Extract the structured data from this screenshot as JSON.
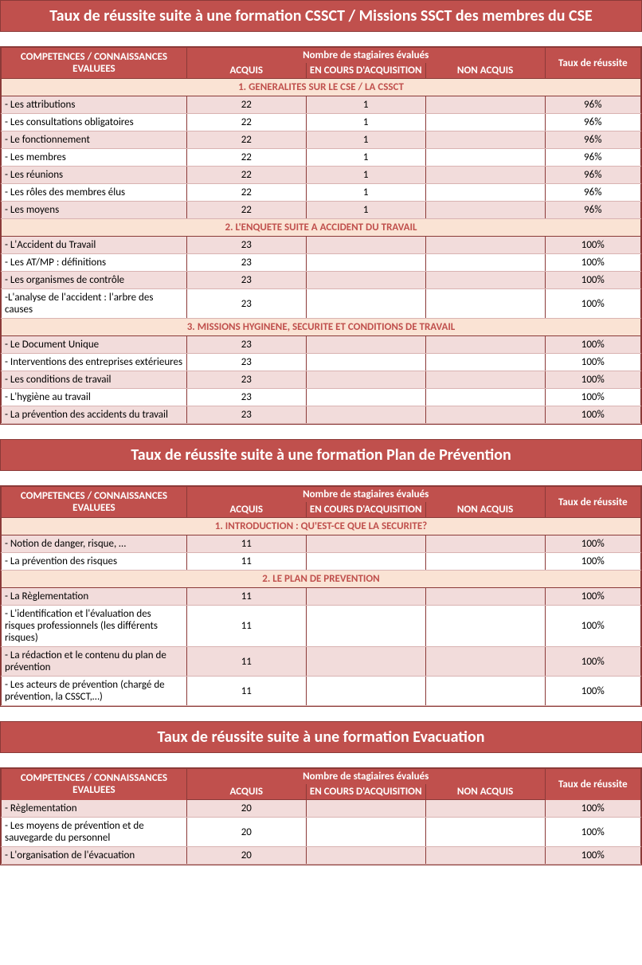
{
  "colors": {
    "header_bg": "#c0504d",
    "header_text": "#ffffff",
    "section_bg": "#fae3d4",
    "section_text": "#c0504d",
    "alt_row_bg": "#f2dcdb",
    "even_row_bg": "#ffffff",
    "border": "#8b3a38",
    "row_border": "#d9b3b2"
  },
  "column_headers": {
    "competences": "COMPETENCES / CONNAISSANCES EVALUEES",
    "nombre": "Nombre de stagiaires évalués",
    "acquis": "ACQUIS",
    "en_cours": "EN COURS D'ACQUISITION",
    "non_acquis": "NON ACQUIS",
    "taux": "Taux de réussite"
  },
  "tables": [
    {
      "title": "Taux de réussite suite à une formation CSSCT / Missions SSCT des membres du CSE",
      "groups": [
        {
          "header": "1. GENERALITES SUR LE CSE / LA CSSCT",
          "rows": [
            {
              "label": "- Les attributions",
              "acquis": "22",
              "en_cours": "1",
              "non_acquis": "",
              "taux": "96%"
            },
            {
              "label": "- Les consultations obligatoires",
              "acquis": "22",
              "en_cours": "1",
              "non_acquis": "",
              "taux": "96%"
            },
            {
              "label": "- Le fonctionnement",
              "acquis": "22",
              "en_cours": "1",
              "non_acquis": "",
              "taux": "96%"
            },
            {
              "label": "- Les membres",
              "acquis": "22",
              "en_cours": "1",
              "non_acquis": "",
              "taux": "96%"
            },
            {
              "label": "- Les réunions",
              "acquis": "22",
              "en_cours": "1",
              "non_acquis": "",
              "taux": "96%"
            },
            {
              "label": "- Les rôles des membres élus",
              "acquis": "22",
              "en_cours": "1",
              "non_acquis": "",
              "taux": "96%"
            },
            {
              "label": "- Les moyens",
              "acquis": "22",
              "en_cours": "1",
              "non_acquis": "",
              "taux": "96%"
            }
          ]
        },
        {
          "header": "2. L'ENQUETE SUITE A ACCIDENT DU TRAVAIL",
          "rows": [
            {
              "label": "- L'Accident du Travail",
              "acquis": "23",
              "en_cours": "",
              "non_acquis": "",
              "taux": "100%"
            },
            {
              "label": "- Les AT/MP : définitions",
              "acquis": "23",
              "en_cours": "",
              "non_acquis": "",
              "taux": "100%"
            },
            {
              "label": "- Les organismes de contrôle",
              "acquis": "23",
              "en_cours": "",
              "non_acquis": "",
              "taux": "100%"
            },
            {
              "label": "-L'analyse de l'accident : l'arbre des causes",
              "acquis": "23",
              "en_cours": "",
              "non_acquis": "",
              "taux": "100%"
            }
          ]
        },
        {
          "header": "3. MISSIONS HYGINENE, SECURITE ET CONDITIONS DE TRAVAIL",
          "rows": [
            {
              "label": "- Le Document Unique",
              "acquis": "23",
              "en_cours": "",
              "non_acquis": "",
              "taux": "100%"
            },
            {
              "label": "- Interventions des entreprises extérieures",
              "acquis": "23",
              "en_cours": "",
              "non_acquis": "",
              "taux": "100%"
            },
            {
              "label": "- Les conditions de travail",
              "acquis": "23",
              "en_cours": "",
              "non_acquis": "",
              "taux": "100%"
            },
            {
              "label": "- L'hygiène au travail",
              "acquis": "23",
              "en_cours": "",
              "non_acquis": "",
              "taux": "100%"
            },
            {
              "label": "- La prévention des accidents du travail",
              "acquis": "23",
              "en_cours": "",
              "non_acquis": "",
              "taux": "100%"
            }
          ]
        }
      ]
    },
    {
      "title": "Taux de réussite suite à une formation Plan de Prévention",
      "groups": [
        {
          "header": "1. INTRODUCTION : QU'EST-CE QUE LA SECURITE?",
          "rows": [
            {
              "label": "- Notion de danger, risque, …",
              "acquis": "11",
              "en_cours": "",
              "non_acquis": "",
              "taux": "100%"
            },
            {
              "label": "- La prévention des risques",
              "acquis": "11",
              "en_cours": "",
              "non_acquis": "",
              "taux": "100%"
            }
          ]
        },
        {
          "header": "2. LE PLAN DE PREVENTION",
          "rows": [
            {
              "label": "- La Règlementation",
              "acquis": "11",
              "en_cours": "",
              "non_acquis": "",
              "taux": "100%"
            },
            {
              "label": "- L'identification et l'évaluation des risques professionnels (les différents risques)",
              "acquis": "11",
              "en_cours": "",
              "non_acquis": "",
              "taux": "100%"
            },
            {
              "label": "- La rédaction et le contenu du plan de prévention",
              "acquis": "11",
              "en_cours": "",
              "non_acquis": "",
              "taux": "100%"
            },
            {
              "label": "- Les acteurs de prévention (chargé de prévention, la CSSCT,…)",
              "acquis": "11",
              "en_cours": "",
              "non_acquis": "",
              "taux": "100%"
            }
          ]
        }
      ]
    },
    {
      "title": "Taux de réussite suite à une formation Evacuation",
      "groups": [
        {
          "header": null,
          "rows": [
            {
              "label": "- Règlementation",
              "acquis": "20",
              "en_cours": "",
              "non_acquis": "",
              "taux": "100%"
            },
            {
              "label": "- Les moyens de prévention et de sauvegarde du personnel",
              "acquis": "20",
              "en_cours": "",
              "non_acquis": "",
              "taux": "100%"
            },
            {
              "label": "- L'organisation de l'évacuation",
              "acquis": "20",
              "en_cours": "",
              "non_acquis": "",
              "taux": "100%"
            }
          ]
        }
      ]
    }
  ]
}
